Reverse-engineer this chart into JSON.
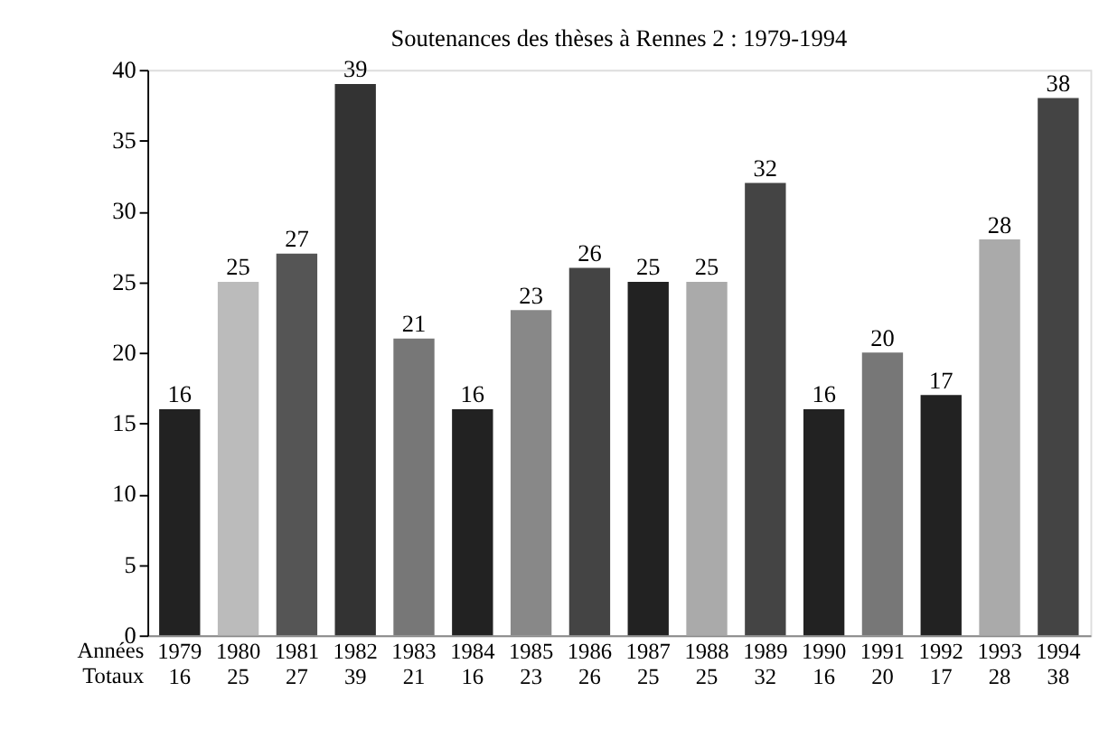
{
  "chart_data": {
    "type": "bar",
    "title": "Soutenances des thèses à Rennes 2 : 1979-1994",
    "categories": [
      "1979",
      "1980",
      "1981",
      "1982",
      "1983",
      "1984",
      "1985",
      "1986",
      "1987",
      "1988",
      "1989",
      "1990",
      "1991",
      "1992",
      "1993",
      "1994"
    ],
    "values": [
      16,
      25,
      27,
      39,
      21,
      16,
      23,
      26,
      25,
      25,
      32,
      16,
      20,
      17,
      28,
      38
    ],
    "colors": [
      "#222222",
      "#bbbbbb",
      "#555555",
      "#333333",
      "#777777",
      "#222222",
      "#888888",
      "#444444",
      "#222222",
      "#aaaaaa",
      "#444444",
      "#222222",
      "#777777",
      "#222222",
      "#aaaaaa",
      "#444444"
    ],
    "ylim": [
      0,
      40
    ],
    "yticks": [
      0,
      5,
      10,
      15,
      20,
      25,
      30,
      35,
      40
    ],
    "data_labels": true,
    "grid": false,
    "annotations": [
      "Années",
      "Totaux",
      {
        "text": "16",
        "x": "1979",
        "y": 16
      },
      {
        "text": "25",
        "x": "1980",
        "y": 25
      },
      {
        "text": "27",
        "x": "1981",
        "y": 27
      },
      {
        "text": "39",
        "x": "1982",
        "y": 39
      },
      {
        "text": "21",
        "x": "1983",
        "y": 21
      },
      {
        "text": "16",
        "x": "1984",
        "y": 16
      },
      {
        "text": "23",
        "x": "1985",
        "y": 23
      },
      {
        "text": "26",
        "x": "1986",
        "y": 26
      },
      {
        "text": "25",
        "x": "1987",
        "y": 25
      },
      {
        "text": "25",
        "x": "1988",
        "y": 25
      },
      {
        "text": "32",
        "x": "1989",
        "y": 32
      },
      {
        "text": "16",
        "x": "1990",
        "y": 16
      },
      {
        "text": "20",
        "x": "1991",
        "y": 20
      },
      {
        "text": "17",
        "x": "1992",
        "y": 17
      },
      {
        "text": "28",
        "x": "1993",
        "y": 28
      },
      {
        "text": "38",
        "x": "1994",
        "y": 38
      }
    ]
  }
}
